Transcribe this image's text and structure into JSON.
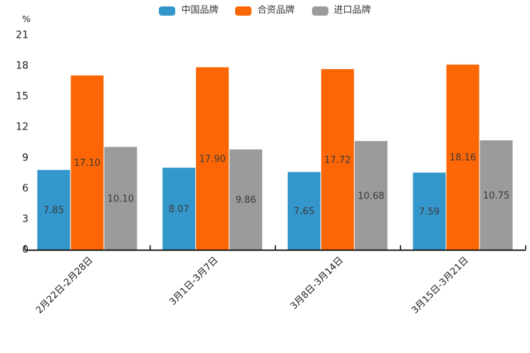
{
  "chart_data": {
    "type": "bar",
    "categories": [
      "2月22日-2月28日",
      "3月1日-3月7日",
      "3月8日-3月14日",
      "3月15日-3月21日"
    ],
    "series": [
      {
        "name": "中国品牌",
        "color": "#3497CB",
        "values": [
          7.85,
          8.07,
          7.65,
          7.59
        ],
        "labels": [
          "7.85",
          "8.07",
          "7.65",
          "7.59"
        ]
      },
      {
        "name": "合资品牌",
        "color": "#FC6604",
        "values": [
          17.1,
          17.9,
          17.72,
          18.16
        ],
        "labels": [
          "17.10",
          "17.90",
          "17.72",
          "18.16"
        ]
      },
      {
        "name": "进口品牌",
        "color": "#9B9B9B",
        "values": [
          10.1,
          9.86,
          10.68,
          10.75
        ],
        "labels": [
          "10.10",
          "9.86",
          "10.68",
          "10.75"
        ]
      }
    ],
    "title": "",
    "xlabel": "",
    "ylabel": "%",
    "yticks": [
      0,
      3,
      6,
      9,
      12,
      15,
      18,
      21
    ],
    "ylim": [
      0,
      21
    ],
    "grid": false,
    "legend_position": "top-center",
    "value_labels": "inside-center",
    "x_label_rotation": 45
  },
  "style": {
    "axis_color": "#000000",
    "tick_label_color": "#1a1a1a",
    "value_label_color": "#3a3a3a",
    "background": "#ffffff"
  }
}
